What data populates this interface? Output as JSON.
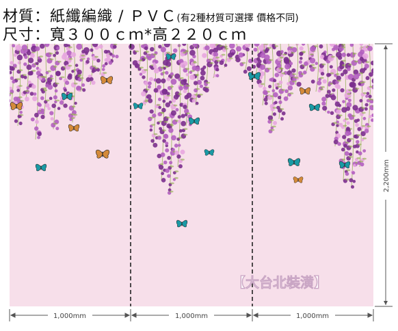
{
  "header": {
    "material_label": "材質：紙纖編織 / ＰＶＣ",
    "material_note": "(有2種材質可選擇  價格不同)",
    "size_label": "尺寸：寬３００ｃｍ*高２２０ｃｍ"
  },
  "dimensions": {
    "panel_width": "1,000mm",
    "height": "2,200mm"
  },
  "watermark": "【大台北裝潢】",
  "colors": {
    "background": "#f7dfea",
    "flower_dark": "#7b2f8e",
    "flower_mid": "#b25fc0",
    "flower_light": "#e7a6df",
    "leaf": "#8fae4a",
    "butterfly_teal": "#1a9aa5",
    "butterfly_orange": "#d48a3a",
    "dashed_line": "#222222"
  }
}
